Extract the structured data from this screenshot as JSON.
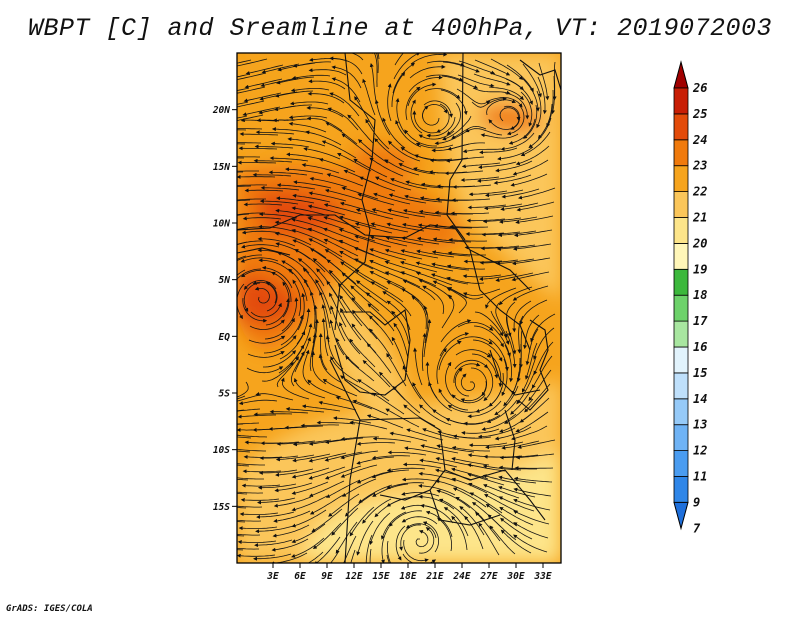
{
  "title": "WBPT [C] and Sreamline at 400hPa, VT: 2019072003",
  "credit": "GrADS: IGES/COLA",
  "map": {
    "lon_range": [
      -1,
      35
    ],
    "lat_range": [
      -20,
      25
    ],
    "lat_ticks": [
      {
        "value": 20,
        "label": "20N"
      },
      {
        "value": 15,
        "label": "15N"
      },
      {
        "value": 10,
        "label": "10N"
      },
      {
        "value": 5,
        "label": "5N"
      },
      {
        "value": 0,
        "label": "EQ"
      },
      {
        "value": -5,
        "label": "5S"
      },
      {
        "value": -10,
        "label": "10S"
      },
      {
        "value": -15,
        "label": "15S"
      }
    ],
    "lon_ticks": [
      {
        "value": 3,
        "label": "3E"
      },
      {
        "value": 6,
        "label": "6E"
      },
      {
        "value": 9,
        "label": "9E"
      },
      {
        "value": 12,
        "label": "12E"
      },
      {
        "value": 15,
        "label": "15E"
      },
      {
        "value": 18,
        "label": "18E"
      },
      {
        "value": 21,
        "label": "21E"
      },
      {
        "value": 24,
        "label": "24E"
      },
      {
        "value": 27,
        "label": "27E"
      },
      {
        "value": 30,
        "label": "30E"
      },
      {
        "value": 33,
        "label": "33E"
      }
    ]
  },
  "colorbar": {
    "labels": [
      "7",
      "9",
      "11",
      "12",
      "13",
      "14",
      "15",
      "16",
      "17",
      "18",
      "19",
      "20",
      "21",
      "22",
      "23",
      "24",
      "25",
      "26"
    ],
    "colors": [
      "#1e6fdb",
      "#2f86e8",
      "#4a9cf0",
      "#6fb3f5",
      "#96caf8",
      "#bfe0fb",
      "#e2f3fc",
      "#a8e6a0",
      "#6dd26a",
      "#3cb83c",
      "#fff6b8",
      "#fde58a",
      "#fbc65a",
      "#f6a41d",
      "#f07a0c",
      "#e34b0a",
      "#c81e05",
      "#a00000"
    ]
  },
  "colors": {
    "ocean_low": "#fde58a",
    "land_mid": "#fbc65a",
    "warm": "#f6a41d",
    "hot": "#f07a0c",
    "hottest": "#e34b0a"
  }
}
